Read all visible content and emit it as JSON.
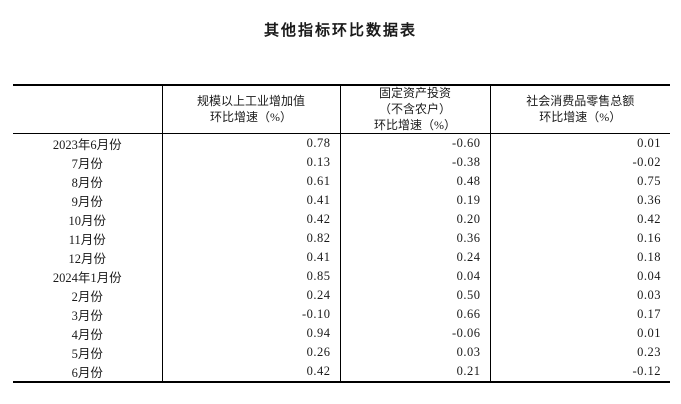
{
  "page": {
    "title": "其他指标环比数据表"
  },
  "table": {
    "header": {
      "period_column_label": "",
      "columns": [
        "规模以上工业增加值\n环比增速（%）",
        "固定资产投资\n（不含农户）\n环比增速（%）",
        "社会消费品零售总额\n环比增速（%）"
      ]
    },
    "rows": [
      {
        "label": "2023年6月份",
        "values": [
          "0.78",
          "-0.60",
          "0.01"
        ]
      },
      {
        "label": "7月份",
        "values": [
          "0.13",
          "-0.38",
          "-0.02"
        ]
      },
      {
        "label": "8月份",
        "values": [
          "0.61",
          "0.48",
          "0.75"
        ]
      },
      {
        "label": "9月份",
        "values": [
          "0.41",
          "0.19",
          "0.36"
        ]
      },
      {
        "label": "10月份",
        "values": [
          "0.42",
          "0.20",
          "0.42"
        ]
      },
      {
        "label": "11月份",
        "values": [
          "0.82",
          "0.36",
          "0.16"
        ]
      },
      {
        "label": "12月份",
        "values": [
          "0.41",
          "0.24",
          "0.18"
        ]
      },
      {
        "label": "2024年1月份",
        "values": [
          "0.85",
          "0.04",
          "0.04"
        ]
      },
      {
        "label": "2月份",
        "values": [
          "0.24",
          "0.50",
          "0.03"
        ]
      },
      {
        "label": "3月份",
        "values": [
          "-0.10",
          "0.66",
          "0.17"
        ]
      },
      {
        "label": "4月份",
        "values": [
          "0.94",
          "-0.06",
          "0.01"
        ]
      },
      {
        "label": "5月份",
        "values": [
          "0.26",
          "0.03",
          "0.23"
        ]
      },
      {
        "label": "6月份",
        "values": [
          "0.42",
          "0.21",
          "-0.12"
        ]
      }
    ]
  },
  "colors": {
    "text": "#1a1a1a",
    "border": "#000000",
    "background": "#ffffff"
  },
  "chart_data": {
    "type": "table",
    "title": "其他指标环比数据表",
    "columns": [
      "",
      "规模以上工业增加值环比增速（%）",
      "固定资产投资（不含农户）环比增速（%）",
      "社会消费品零售总额环比增速（%）"
    ],
    "rows": [
      [
        "2023年6月份",
        0.78,
        -0.6,
        0.01
      ],
      [
        "7月份",
        0.13,
        -0.38,
        -0.02
      ],
      [
        "8月份",
        0.61,
        0.48,
        0.75
      ],
      [
        "9月份",
        0.41,
        0.19,
        0.36
      ],
      [
        "10月份",
        0.42,
        0.2,
        0.42
      ],
      [
        "11月份",
        0.82,
        0.36,
        0.16
      ],
      [
        "12月份",
        0.41,
        0.24,
        0.18
      ],
      [
        "2024年1月份",
        0.85,
        0.04,
        0.04
      ],
      [
        "2月份",
        0.24,
        0.5,
        0.03
      ],
      [
        "3月份",
        -0.1,
        0.66,
        0.17
      ],
      [
        "4月份",
        0.94,
        -0.06,
        0.01
      ],
      [
        "5月份",
        0.26,
        0.03,
        0.23
      ],
      [
        "6月份",
        0.42,
        0.21,
        -0.12
      ]
    ]
  }
}
